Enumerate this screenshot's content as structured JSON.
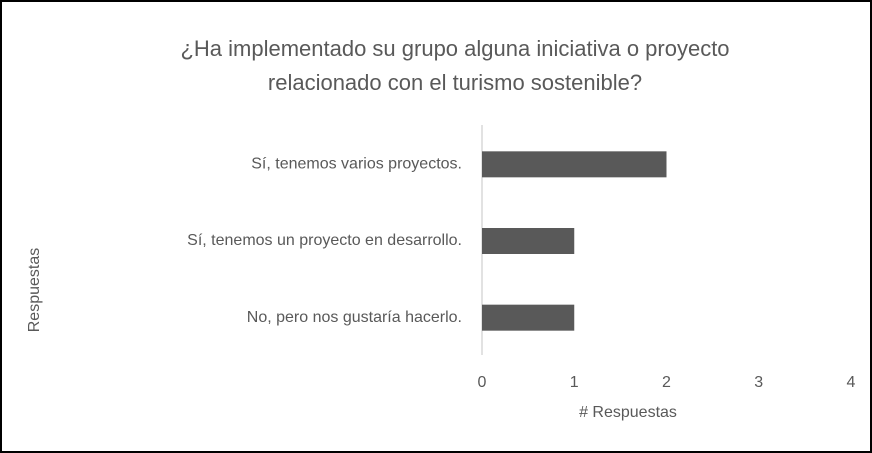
{
  "chart_data": {
    "type": "bar",
    "orientation": "horizontal",
    "title": "¿Ha implementado su grupo alguna iniciativa o proyecto relacionado con el turismo sostenible?",
    "categories": [
      "Sí, tenemos varios proyectos.",
      "Sí, tenemos un proyecto en desarrollo.",
      "No, pero nos gustaría hacerlo."
    ],
    "values": [
      2,
      1,
      1
    ],
    "color": "#595959",
    "xlabel": "# Respuestas",
    "ylabel": "Respuestas",
    "xlim": [
      0,
      4
    ],
    "xticks": [
      0,
      1,
      2,
      3,
      4
    ],
    "grid": false
  }
}
